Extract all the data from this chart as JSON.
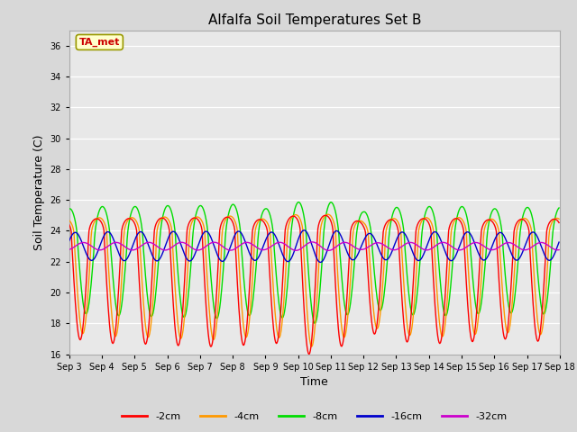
{
  "title": "Alfalfa Soil Temperatures Set B",
  "xlabel": "Time",
  "ylabel": "Soil Temperature (C)",
  "ylim": [
    16,
    37
  ],
  "yticks": [
    16,
    18,
    20,
    22,
    24,
    26,
    28,
    30,
    32,
    34,
    36
  ],
  "bg_color": "#d8d8d8",
  "plot_bg_color": "#e8e8e8",
  "annotation_text": "TA_met",
  "annotation_color": "#cc0000",
  "annotation_bg": "#ffffcc",
  "annotation_border": "#999900",
  "series_colors": [
    "#ff0000",
    "#ff9900",
    "#00dd00",
    "#0000cc",
    "#cc00cc"
  ],
  "series_lw": [
    1.0,
    1.0,
    1.0,
    1.0,
    1.0
  ],
  "legend_labels": [
    "-2cm",
    "-4cm",
    "-8cm",
    "-16cm",
    "-32cm"
  ],
  "n_days": 15,
  "pts_per_day": 48,
  "mean_base": 23.0,
  "amp_2cm": 7.0,
  "amp_4cm": 6.5,
  "amp_8cm": 5.0,
  "amp_16cm": 1.3,
  "amp_32cm": 0.55,
  "phase_shift_4cm": 0.08,
  "phase_shift_8cm": 0.18,
  "phase_shift_16cm": 0.35,
  "phase_shift_32cm": 0.6,
  "sharpness": 3.5
}
